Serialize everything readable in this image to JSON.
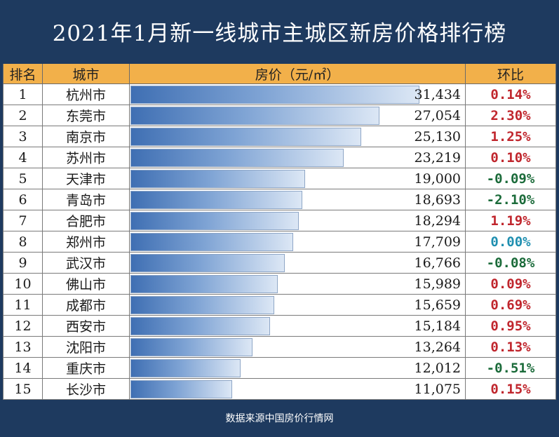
{
  "title": "2021年1月新一线城市主城区新房价格排行榜",
  "footer": "数据来源中国房价行情网",
  "headers": {
    "rank": "排名",
    "city": "城市",
    "price": "房价（元/㎡）",
    "change": "环比"
  },
  "colors": {
    "positive": "#c0262d",
    "negative": "#1b6b3a",
    "zero": "#1f8fb0",
    "header_bg": "#f2b04a",
    "frame": "#1e3a5f"
  },
  "chart_data": {
    "type": "bar",
    "title": "2021年1月新一线城市主城区新房价格排行榜",
    "xlabel": "",
    "ylabel": "房价（元/㎡）",
    "ranks": [
      "1",
      "2",
      "3",
      "4",
      "5",
      "6",
      "7",
      "8",
      "9",
      "10",
      "11",
      "12",
      "13",
      "14",
      "15"
    ],
    "categories": [
      "杭州市",
      "东莞市",
      "南京市",
      "苏州市",
      "天津市",
      "青岛市",
      "合肥市",
      "郑州市",
      "武汉市",
      "佛山市",
      "成都市",
      "西安市",
      "沈阳市",
      "重庆市",
      "长沙市"
    ],
    "values": [
      31434,
      27054,
      25130,
      23219,
      19000,
      18693,
      18294,
      17709,
      16766,
      15989,
      15659,
      15184,
      13264,
      12012,
      11075
    ],
    "value_labels": [
      "31,434",
      "27,054",
      "25,130",
      "23,219",
      "19,000",
      "18,693",
      "18,294",
      "17,709",
      "16,766",
      "15,989",
      "15,659",
      "15,184",
      "13,264",
      "12,012",
      "11,075"
    ],
    "mom_change": [
      "0.14%",
      "2.30%",
      "1.25%",
      "0.10%",
      "-0.09%",
      "-2.10%",
      "1.19%",
      "0.00%",
      "-0.08%",
      "0.09%",
      "0.69%",
      "0.95%",
      "0.13%",
      "-0.51%",
      "0.15%"
    ]
  }
}
